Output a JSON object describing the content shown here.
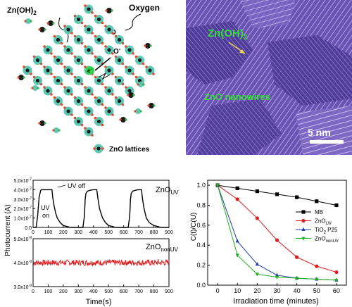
{
  "schematic": {
    "zn_oh2_label": "Zn(OH)",
    "zn_oh2_sub": "2",
    "oxygen_label": "Oxygen",
    "o_label": "O",
    "o_minus_label": "O",
    "o_minus_sup": "-",
    "electron_label": "e",
    "electron_sup": "-",
    "legend_label": "ZnO lattices",
    "colors": {
      "core": "#1a1a1a",
      "halo": "#5cc8b4",
      "oxygen": "#e2492a",
      "zinc": "#39b04a"
    }
  },
  "micrograph": {
    "label_zn_oh2": "Zn(OH)",
    "label_zn_oh2_sub": "2",
    "label_nanowires": "ZnO nanowires",
    "scale_bar_label": "5 nm",
    "colors": {
      "background": "#6f58b8",
      "label": "#33e033"
    }
  },
  "chart_data": [
    {
      "type": "line",
      "panel": "top-left",
      "ylabel": "Photocurrent (A)",
      "xlim": [
        0,
        900
      ],
      "ylim": [
        0,
        5e-07
      ],
      "x_ticks": [
        0,
        100,
        200,
        300,
        400,
        500,
        600,
        700,
        800,
        900
      ],
      "y_ticks": [
        "0.0",
        "1.0x10",
        "2.0x10",
        "3.0x10",
        "4.0x10",
        "5.0x10"
      ],
      "y_tick_exp": "-7",
      "series_label": "ZnO",
      "series_label_sub": "UV",
      "annotations": {
        "uv_off": "UV off",
        "uv_on_1": "UV",
        "uv_on_2": "on"
      },
      "series": [
        {
          "color": "#000000",
          "x": [
            0,
            20,
            30,
            40,
            50,
            55,
            60,
            70,
            80,
            100,
            120,
            125,
            130,
            140,
            150,
            160,
            180,
            200,
            250,
            300,
            330,
            340,
            345,
            350,
            360,
            380,
            400,
            420,
            422,
            430,
            440,
            460,
            480,
            500,
            550,
            600,
            630,
            640,
            645,
            650,
            660,
            680,
            700,
            715,
            718,
            725,
            735,
            750,
            770,
            800,
            850,
            900
          ],
          "y": [
            0,
            0,
            1.2e-07,
            3.2e-07,
            3.9e-07,
            4e-07,
            4e-07,
            4e-07,
            4e-07,
            4e-07,
            4e-07,
            4e-07,
            3.2e-07,
            2.2e-07,
            1.5e-07,
            1e-07,
            5e-08,
            2e-08,
            0,
            0,
            0,
            1.2e-07,
            3e-07,
            3.6e-07,
            3.85e-07,
            3.95e-07,
            4e-07,
            4e-07,
            4e-07,
            3e-07,
            2e-07,
            1e-07,
            5e-08,
            2e-08,
            0,
            0,
            0,
            1.2e-07,
            3e-07,
            3.6e-07,
            3.85e-07,
            3.95e-07,
            4e-07,
            4e-07,
            4e-07,
            3e-07,
            2e-07,
            1e-07,
            5e-08,
            2e-08,
            0,
            0
          ]
        }
      ]
    },
    {
      "type": "line",
      "panel": "bottom-left",
      "xlabel": "Time(s)",
      "xlim": [
        0,
        900
      ],
      "ylim": [
        3e-09,
        5e-09
      ],
      "x_ticks": [
        0,
        100,
        200,
        300,
        400,
        500,
        600,
        700,
        800,
        900
      ],
      "y_ticks": [
        "3.0x10",
        "4.0x10",
        "5.0x10"
      ],
      "y_tick_exp": "-9",
      "series_label": "ZnO",
      "series_label_sub": "nonUV",
      "series": [
        {
          "color": "#e31a1c",
          "mean": 4e-09,
          "noise": 1.2e-10,
          "x_start": 0,
          "x_end": 900
        }
      ]
    },
    {
      "type": "line",
      "panel": "right",
      "xlabel": "Irradiation time (minutes)",
      "ylabel": "C(t)/C(U)",
      "xlim": [
        -5,
        65
      ],
      "ylim": [
        0,
        1.05
      ],
      "x_ticks": [
        0,
        10,
        20,
        30,
        40,
        50,
        60
      ],
      "y_ticks": [
        0.0,
        0.2,
        0.4,
        0.6,
        0.8,
        1.0
      ],
      "x": [
        0,
        10,
        20,
        30,
        40,
        50,
        60
      ],
      "legend_position": "right",
      "series": [
        {
          "name": "MB",
          "name_sub": "",
          "color": "#000000",
          "marker": "square",
          "values": [
            1.0,
            0.97,
            0.94,
            0.91,
            0.88,
            0.84,
            0.8
          ]
        },
        {
          "name": "ZnO",
          "name_sub": "UV",
          "color": "#e31a1c",
          "marker": "circle",
          "values": [
            1.0,
            0.86,
            0.67,
            0.45,
            0.28,
            0.19,
            0.13
          ]
        },
        {
          "name": "TiO",
          "name_sub": "2",
          "name_suffix": " P25",
          "color": "#1f3fa8",
          "marker": "triangle-up",
          "values": [
            1.0,
            0.44,
            0.21,
            0.1,
            0.07,
            0.06,
            0.05
          ]
        },
        {
          "name": "ZnO",
          "name_sub": "nonUV",
          "color": "#22b022",
          "marker": "triangle-down",
          "values": [
            1.0,
            0.3,
            0.11,
            0.08,
            0.07,
            0.06,
            0.05
          ]
        }
      ]
    }
  ]
}
